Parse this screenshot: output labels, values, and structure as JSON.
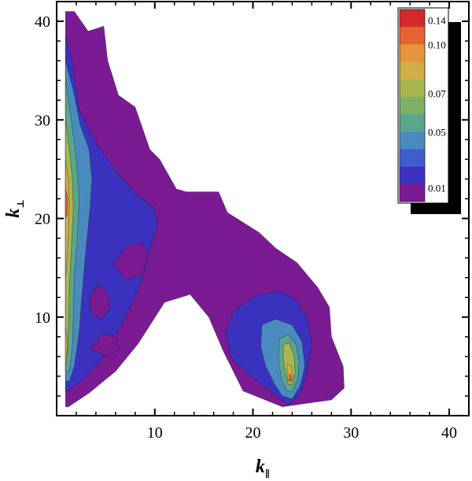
{
  "chart_data": {
    "type": "heatmap",
    "subtype": "filled-contour",
    "xlabel": "k",
    "xlabel_subscript": "∥",
    "ylabel": "k",
    "ylabel_subscript": "⊥",
    "xlim": [
      0,
      42
    ],
    "ylim": [
      0,
      42
    ],
    "xticks": [
      10,
      20,
      30,
      40
    ],
    "yticks": [
      10,
      20,
      30,
      40
    ],
    "grid": false,
    "legend_position": "top-right",
    "colorbar": {
      "levels": [
        0.01,
        0.02,
        0.03,
        0.04,
        0.05,
        0.06,
        0.07,
        0.08,
        0.09,
        0.1,
        0.12,
        0.14
      ],
      "labels": [
        "0.14",
        "0.10",
        "0.07",
        "0.05",
        "0.01"
      ],
      "colors": [
        "#d42a2a",
        "#e36432",
        "#e6953a",
        "#cfae45",
        "#a9b64e",
        "#7fb067",
        "#5aa58c",
        "#4a8bbf",
        "#3f5dcf",
        "#3b33c0",
        "#7b1b94"
      ]
    },
    "regions": [
      {
        "level": 0.01,
        "color": "#7b1b94",
        "outline": [
          [
            0.9,
            41
          ],
          [
            1.8,
            41
          ],
          [
            3.2,
            39
          ],
          [
            4.8,
            39.5
          ],
          [
            5.2,
            36
          ],
          [
            6.3,
            32.5
          ],
          [
            8,
            31.3
          ],
          [
            9.5,
            27
          ],
          [
            10.5,
            26
          ],
          [
            12.2,
            23
          ],
          [
            13.2,
            22.7
          ],
          [
            16.5,
            22.7
          ],
          [
            17.4,
            20.6
          ],
          [
            20.6,
            18.6
          ],
          [
            22.3,
            17
          ],
          [
            24.5,
            15.5
          ],
          [
            26.6,
            13
          ],
          [
            27.8,
            11
          ],
          [
            28,
            8
          ],
          [
            29.2,
            5
          ],
          [
            29.3,
            2.8
          ],
          [
            28,
            1.6
          ],
          [
            23,
            0.9
          ],
          [
            19,
            2.5
          ],
          [
            17,
            6.5
          ],
          [
            15.5,
            10
          ],
          [
            13.6,
            12.3
          ],
          [
            11,
            11.5
          ],
          [
            8.3,
            7.3
          ],
          [
            6,
            4.5
          ],
          [
            3.3,
            2.3
          ],
          [
            1.2,
            0.9
          ],
          [
            0.9,
            0.9
          ]
        ]
      },
      {
        "level": 0.02,
        "color": "#3b33c0",
        "outline": [
          [
            0.9,
            38.5
          ],
          [
            1.6,
            36
          ],
          [
            2.3,
            31
          ],
          [
            4.1,
            27.5
          ],
          [
            6.3,
            24.5
          ],
          [
            8.1,
            22.5
          ],
          [
            9.8,
            21.2
          ],
          [
            10.3,
            19.5
          ],
          [
            9.6,
            17.2
          ],
          [
            9,
            14.8
          ],
          [
            8.2,
            12.5
          ],
          [
            6.5,
            9
          ],
          [
            4.5,
            5.5
          ],
          [
            2.5,
            3.5
          ],
          [
            1,
            2.5
          ],
          [
            0.9,
            2.5
          ]
        ]
      },
      {
        "level": 0.02,
        "color": "#3b33c0",
        "outline": [
          [
            17.2,
            8.5
          ],
          [
            18.2,
            10.8
          ],
          [
            20.5,
            12.3
          ],
          [
            22.7,
            12.6
          ],
          [
            24.3,
            11.8
          ],
          [
            25.5,
            10
          ],
          [
            26,
            7.2
          ],
          [
            25.5,
            4.2
          ],
          [
            24.8,
            2.1
          ],
          [
            23.6,
            1.1
          ],
          [
            22,
            2.3
          ],
          [
            20,
            3.8
          ],
          [
            17.8,
            5.8
          ]
        ]
      },
      {
        "level": 0.03,
        "color": "#4a8bbf",
        "outline": [
          [
            0.9,
            36
          ],
          [
            1.7,
            33
          ],
          [
            2.4,
            29.5
          ],
          [
            3.3,
            27
          ],
          [
            3.6,
            24
          ],
          [
            3.4,
            21
          ],
          [
            3,
            17
          ],
          [
            2.6,
            12.5
          ],
          [
            2.3,
            8.5
          ],
          [
            1.8,
            5
          ],
          [
            1.3,
            3.5
          ],
          [
            0.9,
            3.5
          ]
        ]
      },
      {
        "level": 0.03,
        "color": "#4a8bbf",
        "outline": [
          [
            20.9,
            9.2
          ],
          [
            22.3,
            9.8
          ],
          [
            24,
            9.2
          ],
          [
            25,
            7.5
          ],
          [
            25.3,
            5
          ],
          [
            24.8,
            3
          ],
          [
            24,
            1.7
          ],
          [
            23,
            2
          ],
          [
            22.2,
            3.2
          ],
          [
            21.3,
            5
          ],
          [
            20.8,
            7
          ]
        ]
      },
      {
        "level": 0.05,
        "color": "#5aa58c",
        "outline": [
          [
            0.9,
            34
          ],
          [
            1.5,
            30
          ],
          [
            2,
            26
          ],
          [
            2.3,
            22
          ],
          [
            2.1,
            18
          ],
          [
            1.8,
            14
          ],
          [
            1.7,
            10
          ],
          [
            1.6,
            7
          ],
          [
            1.3,
            4.5
          ],
          [
            0.9,
            4.5
          ]
        ]
      },
      {
        "level": 0.05,
        "color": "#5aa58c",
        "outline": [
          [
            22.7,
            7.8
          ],
          [
            23.6,
            8.2
          ],
          [
            24.4,
            7.2
          ],
          [
            24.7,
            5.5
          ],
          [
            24.6,
            3.8
          ],
          [
            24,
            2.4
          ],
          [
            23.4,
            2.6
          ],
          [
            22.9,
            3.8
          ],
          [
            22.6,
            5.6
          ]
        ]
      },
      {
        "level": 0.07,
        "color": "#a9b64e",
        "outline": [
          [
            0.9,
            30
          ],
          [
            1.3,
            27
          ],
          [
            1.6,
            24
          ],
          [
            1.7,
            21
          ],
          [
            1.5,
            17
          ],
          [
            1.3,
            13
          ],
          [
            1.2,
            9
          ],
          [
            1.1,
            6
          ],
          [
            0.9,
            5.5
          ]
        ]
      },
      {
        "level": 0.07,
        "color": "#a9b64e",
        "outline": [
          [
            23.1,
            7.2
          ],
          [
            23.7,
            7.4
          ],
          [
            24.2,
            6
          ],
          [
            24.3,
            4.4
          ],
          [
            24,
            3.1
          ],
          [
            23.6,
            3.2
          ],
          [
            23.3,
            4.4
          ],
          [
            23.1,
            5.8
          ]
        ]
      },
      {
        "level": 0.09,
        "color": "#cfae45",
        "outline": [
          [
            0.9,
            26
          ],
          [
            1.2,
            24
          ],
          [
            1.3,
            21.5
          ],
          [
            1.2,
            18
          ],
          [
            1,
            15
          ],
          [
            0.9,
            14
          ]
        ]
      },
      {
        "level": 0.09,
        "color": "#cfae45",
        "outline": [
          [
            0.9,
            9
          ],
          [
            1.1,
            7.5
          ],
          [
            1,
            5.5
          ],
          [
            0.9,
            5.2
          ]
        ]
      },
      {
        "level": 0.09,
        "color": "#cfae45",
        "outline": [
          [
            23.5,
            5.2
          ],
          [
            23.9,
            5.1
          ],
          [
            24.1,
            3.9
          ],
          [
            23.8,
            3.4
          ],
          [
            23.5,
            3.8
          ]
        ]
      },
      {
        "level": 0.12,
        "color": "#e36432",
        "outline": [
          [
            0.9,
            23
          ],
          [
            1.15,
            22
          ],
          [
            1.1,
            20.5
          ],
          [
            0.9,
            20
          ]
        ]
      },
      {
        "level": 0.12,
        "color": "#e36432",
        "outline": [
          [
            23.7,
            4.2
          ],
          [
            23.95,
            4
          ],
          [
            23.9,
            3.5
          ],
          [
            23.7,
            3.6
          ]
        ]
      },
      {
        "level": 0.01,
        "color": "#7b1b94",
        "outline": [
          [
            3.3,
            12
          ],
          [
            4.3,
            13.3
          ],
          [
            5.2,
            12.5
          ],
          [
            5.4,
            10.8
          ],
          [
            4.6,
            9.8
          ],
          [
            3.6,
            10.3
          ]
        ]
      },
      {
        "level": 0.01,
        "color": "#7b1b94",
        "outline": [
          [
            5.8,
            15.4
          ],
          [
            7.2,
            17.2
          ],
          [
            8.7,
            17.6
          ],
          [
            9.4,
            16.2
          ],
          [
            8.6,
            14.2
          ],
          [
            7,
            13.8
          ]
        ]
      },
      {
        "level": 0.01,
        "color": "#7b1b94",
        "outline": [
          [
            3.4,
            6.8
          ],
          [
            4.6,
            8.3
          ],
          [
            6,
            8
          ],
          [
            6.3,
            6.8
          ],
          [
            5.2,
            6
          ]
        ]
      }
    ]
  }
}
